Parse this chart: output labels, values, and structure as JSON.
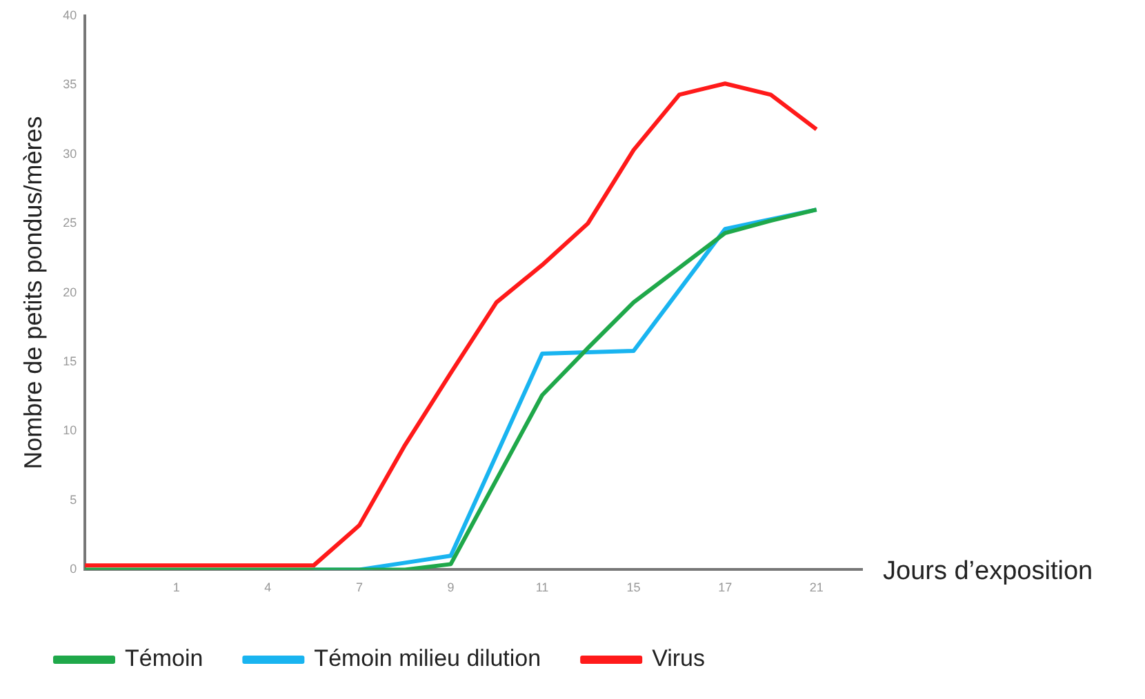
{
  "chart_data": {
    "type": "line",
    "xlabel": "Jours d’exposition",
    "ylabel": "Nombre de petits pondus/mères",
    "categories": [
      null,
      null,
      "1",
      null,
      "4",
      null,
      "7",
      null,
      "9",
      null,
      "11",
      null,
      "15",
      null,
      "17",
      null,
      "21",
      null
    ],
    "ylim": [
      0,
      40
    ],
    "yticks": [
      0,
      5,
      10,
      15,
      20,
      25,
      30,
      35,
      40
    ],
    "series": [
      {
        "name": "Témoin",
        "color": "#1fa84a",
        "values": [
          0,
          0,
          0,
          0,
          0,
          0,
          0,
          0,
          0.4,
          6.5,
          12.6,
          16,
          19.3,
          21.8,
          24.3,
          25.2,
          26,
          null
        ]
      },
      {
        "name": "Témoin milieu dilution",
        "color": "#19b4f0",
        "values": [
          null,
          null,
          null,
          null,
          null,
          0,
          0,
          0.5,
          1,
          8.3,
          15.6,
          15.7,
          15.8,
          20.2,
          24.6,
          25.3,
          26,
          null
        ]
      },
      {
        "name": "Virus",
        "color": "#ff1a1a",
        "values": [
          0.3,
          0.3,
          0.3,
          0.3,
          0.3,
          0.3,
          3.2,
          9,
          14.2,
          19.3,
          22,
          25,
          30.3,
          34.3,
          35.1,
          34.3,
          31.8,
          null
        ]
      }
    ],
    "grid": false,
    "legend": "bottom",
    "marker": "none",
    "line_style": "solid"
  }
}
